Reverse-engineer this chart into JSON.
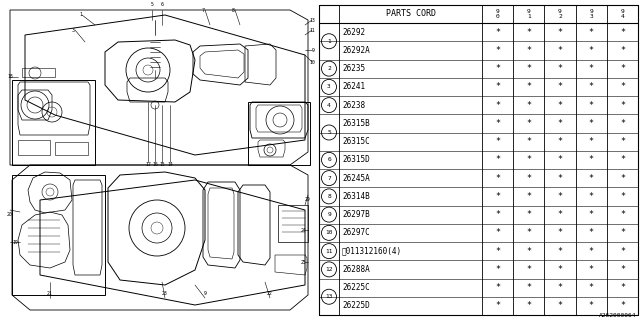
{
  "bg_color": "#ffffff",
  "col_header": "PARTS CORD",
  "year_cols": [
    "9\n0",
    "9\n1",
    "9\n2",
    "9\n3",
    "9\n4"
  ],
  "rows": [
    {
      "num": "1",
      "sub": false,
      "code": "26292",
      "vals": [
        "*",
        "*",
        "*",
        "*",
        "*"
      ]
    },
    {
      "num": "1",
      "sub": true,
      "code": "26292A",
      "vals": [
        "*",
        "*",
        "*",
        "*",
        "*"
      ]
    },
    {
      "num": "2",
      "sub": false,
      "code": "26235",
      "vals": [
        "*",
        "*",
        "*",
        "*",
        "*"
      ]
    },
    {
      "num": "3",
      "sub": false,
      "code": "26241",
      "vals": [
        "*",
        "*",
        "*",
        "*",
        "*"
      ]
    },
    {
      "num": "4",
      "sub": false,
      "code": "26238",
      "vals": [
        "*",
        "*",
        "*",
        "*",
        "*"
      ]
    },
    {
      "num": "5",
      "sub": false,
      "code": "26315B",
      "vals": [
        "*",
        "*",
        "*",
        "*",
        "*"
      ]
    },
    {
      "num": "5",
      "sub": true,
      "code": "26315C",
      "vals": [
        "*",
        "*",
        "*",
        "*",
        "*"
      ]
    },
    {
      "num": "6",
      "sub": false,
      "code": "26315D",
      "vals": [
        "*",
        "*",
        "*",
        "*",
        "*"
      ]
    },
    {
      "num": "7",
      "sub": false,
      "code": "26245A",
      "vals": [
        "*",
        "*",
        "*",
        "*",
        "*"
      ]
    },
    {
      "num": "8",
      "sub": false,
      "code": "26314B",
      "vals": [
        "*",
        "*",
        "*",
        "*",
        "*"
      ]
    },
    {
      "num": "9",
      "sub": false,
      "code": "26297B",
      "vals": [
        "*",
        "*",
        "*",
        "*",
        "*"
      ]
    },
    {
      "num": "10",
      "sub": false,
      "code": "26297C",
      "vals": [
        "*",
        "*",
        "*",
        "*",
        "*"
      ]
    },
    {
      "num": "11",
      "sub": false,
      "code": "Ⓑ011312160(4)",
      "vals": [
        "*",
        "*",
        "*",
        "*",
        "*"
      ]
    },
    {
      "num": "12",
      "sub": false,
      "code": "26288A",
      "vals": [
        "*",
        "*",
        "*",
        "*",
        "*"
      ]
    },
    {
      "num": "13",
      "sub": false,
      "code": "26225C",
      "vals": [
        "*",
        "*",
        "*",
        "*",
        "*"
      ]
    },
    {
      "num": "13",
      "sub": true,
      "code": "26225D",
      "vals": [
        "*",
        "*",
        "*",
        "*",
        "*"
      ]
    }
  ],
  "footer": "A262000064",
  "line_color": "#000000",
  "text_color": "#000000"
}
